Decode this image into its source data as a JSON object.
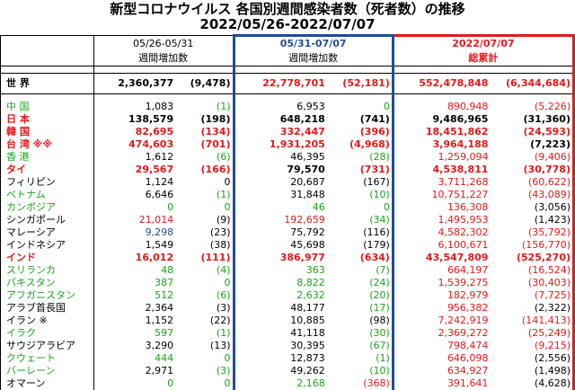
{
  "title_line1": "新型コロナウイルス 各国別週間感染者数（死者数）の推移",
  "title_line2": "2022/05/26-2022/07/07",
  "headers": {
    "period_a": "05/26-05/31",
    "period_a_sub": "週間増加数",
    "period_b": "05/31-07/07",
    "period_b_sub": "週間増加数",
    "period_c": "2022/07/07",
    "period_c_sub": "総累計"
  },
  "world": {
    "name": "世 界",
    "a_cases": "2,360,377",
    "a_deaths": "(9,478)",
    "b_cases": "22,778,701",
    "b_deaths": "(52,181)",
    "c_cases": "552,478,848",
    "c_deaths": "(6,344,684)"
  },
  "colors": {
    "red": "#e21a1a",
    "green": "#1aa51a",
    "blue": "#1f4e96"
  },
  "rows": [
    {
      "name": "中 国",
      "nc": "green",
      "a": "1,083",
      "ac": "black",
      "ad": "(1)",
      "adc": "green",
      "b": "6,953",
      "bc": "black",
      "bd": "0",
      "bdc": "green",
      "c": "890,948",
      "cc": "red",
      "cd": "(5,226)",
      "cdc": "red",
      "bold": false
    },
    {
      "name": "日 本",
      "nc": "red",
      "a": "138,579",
      "ac": "black",
      "ad": "(198)",
      "adc": "black",
      "b": "648,218",
      "bc": "black",
      "bd": "(741)",
      "bdc": "black",
      "c": "9,486,965",
      "cc": "black",
      "cd": "(31,360)",
      "cdc": "black",
      "bold": true
    },
    {
      "name": "韓 国",
      "nc": "red",
      "a": "82,695",
      "ac": "red",
      "ad": "(134)",
      "adc": "red",
      "b": "332,447",
      "bc": "red",
      "bd": "(396)",
      "bdc": "red",
      "c": "18,451,862",
      "cc": "red",
      "cd": "(24,593)",
      "cdc": "red",
      "bold": true
    },
    {
      "name": "台 湾 ※※",
      "nc": "red",
      "a": "474,603",
      "ac": "red",
      "ad": "(701)",
      "adc": "red",
      "b": "1,931,205",
      "bc": "red",
      "bd": "(4,968)",
      "bdc": "red",
      "c": "3,964,188",
      "cc": "red",
      "cd": "(7,223)",
      "cdc": "black",
      "bold": true
    },
    {
      "name": "香 港",
      "nc": "green",
      "a": "1,612",
      "ac": "black",
      "ad": "(6)",
      "adc": "green",
      "b": "46,395",
      "bc": "black",
      "bd": "(28)",
      "bdc": "green",
      "c": "1,259,094",
      "cc": "red",
      "cd": "(9,406)",
      "cdc": "red",
      "bold": false
    },
    {
      "name": "タイ",
      "nc": "red",
      "a": "29,567",
      "ac": "red",
      "ad": "(166)",
      "adc": "red",
      "b": "79,570",
      "bc": "black",
      "bd": "(731)",
      "bdc": "red",
      "c": "4,538,811",
      "cc": "red",
      "cd": "(30,778)",
      "cdc": "red",
      "bold": true
    },
    {
      "name": "フィリピン",
      "nc": "black",
      "a": "1,124",
      "ac": "black",
      "ad": "0",
      "adc": "black",
      "b": "20,687",
      "bc": "black",
      "bd": "(167)",
      "bdc": "black",
      "c": "3,711,268",
      "cc": "red",
      "cd": "(60,622)",
      "cdc": "red",
      "bold": false
    },
    {
      "name": "ベトナム",
      "nc": "green",
      "a": "6,646",
      "ac": "black",
      "ad": "(1)",
      "adc": "green",
      "b": "31,848",
      "bc": "black",
      "bd": "(10)",
      "bdc": "green",
      "c": "10,751,227",
      "cc": "red",
      "cd": "(43,089)",
      "cdc": "red",
      "bold": false
    },
    {
      "name": "カンボジア",
      "nc": "green",
      "a": "0",
      "ac": "green",
      "ad": "0",
      "adc": "green",
      "b": "46",
      "bc": "green",
      "bd": "0",
      "bdc": "green",
      "c": "136,308",
      "cc": "red",
      "cd": "(3,056)",
      "cdc": "black",
      "bold": false
    },
    {
      "name": "シンガポール",
      "nc": "black",
      "a": "21,014",
      "ac": "red",
      "ad": "(9)",
      "adc": "black",
      "b": "192,659",
      "bc": "red",
      "bd": "(34)",
      "bdc": "green",
      "c": "1,495,953",
      "cc": "red",
      "cd": "(1,423)",
      "cdc": "black",
      "bold": false
    },
    {
      "name": "マレーシア",
      "nc": "black",
      "a": "9,298",
      "ac": "blue",
      "ad": "(23)",
      "adc": "black",
      "b": "75,792",
      "bc": "black",
      "bd": "(116)",
      "bdc": "black",
      "c": "4,582,302",
      "cc": "red",
      "cd": "(35,792)",
      "cdc": "red",
      "bold": false
    },
    {
      "name": "インドネシア",
      "nc": "black",
      "a": "1,549",
      "ac": "black",
      "ad": "(38)",
      "adc": "black",
      "b": "45,698",
      "bc": "black",
      "bd": "(179)",
      "bdc": "black",
      "c": "6,100,671",
      "cc": "red",
      "cd": "(156,770)",
      "cdc": "red",
      "bold": false
    },
    {
      "name": "インド",
      "nc": "red",
      "a": "16,012",
      "ac": "red",
      "ad": "(111)",
      "adc": "red",
      "b": "386,977",
      "bc": "red",
      "bd": "(634)",
      "bdc": "red",
      "c": "43,547,809",
      "cc": "red",
      "cd": "(525,270)",
      "cdc": "red",
      "bold": true
    },
    {
      "name": "スリランカ",
      "nc": "green",
      "a": "48",
      "ac": "green",
      "ad": "(4)",
      "adc": "green",
      "b": "363",
      "bc": "green",
      "bd": "(7)",
      "bdc": "green",
      "c": "664,197",
      "cc": "red",
      "cd": "(16,524)",
      "cdc": "red",
      "bold": false
    },
    {
      "name": "パキスタン",
      "nc": "green",
      "a": "387",
      "ac": "green",
      "ad": "0",
      "adc": "green",
      "b": "8,822",
      "bc": "green",
      "bd": "(24)",
      "bdc": "green",
      "c": "1,539,275",
      "cc": "red",
      "cd": "(30,403)",
      "cdc": "red",
      "bold": false
    },
    {
      "name": "アフガニスタン",
      "nc": "green",
      "a": "512",
      "ac": "green",
      "ad": "(6)",
      "adc": "green",
      "b": "2,632",
      "bc": "green",
      "bd": "(20)",
      "bdc": "green",
      "c": "182,979",
      "cc": "red",
      "cd": "(7,725)",
      "cdc": "red",
      "bold": false
    },
    {
      "name": "アラブ首長国",
      "nc": "black",
      "a": "2,364",
      "ac": "black",
      "ad": "(3)",
      "adc": "black",
      "b": "48,177",
      "bc": "black",
      "bd": "(17)",
      "bdc": "green",
      "c": "956,382",
      "cc": "red",
      "cd": "(2,322)",
      "cdc": "black",
      "bold": false
    },
    {
      "name": "イラン ※",
      "nc": "black",
      "a": "1,152",
      "ac": "black",
      "ad": "(22)",
      "adc": "black",
      "b": "10,885",
      "bc": "black",
      "bd": "(98)",
      "bdc": "black",
      "c": "7,242,919",
      "cc": "red",
      "cd": "(141,413)",
      "cdc": "red",
      "bold": false
    },
    {
      "name": "イラク",
      "nc": "green",
      "a": "597",
      "ac": "green",
      "ad": "(1)",
      "adc": "green",
      "b": "41,118",
      "bc": "black",
      "bd": "(30)",
      "bdc": "green",
      "c": "2,369,272",
      "cc": "red",
      "cd": "(25,249)",
      "cdc": "red",
      "bold": false
    },
    {
      "name": "サウジアラビア",
      "nc": "black",
      "a": "3,290",
      "ac": "black",
      "ad": "(13)",
      "adc": "black",
      "b": "30,395",
      "bc": "black",
      "bd": "(67)",
      "bdc": "green",
      "c": "798,474",
      "cc": "red",
      "cd": "(9,215)",
      "cdc": "red",
      "bold": false
    },
    {
      "name": "クウェート",
      "nc": "green",
      "a": "444",
      "ac": "green",
      "ad": "0",
      "adc": "green",
      "b": "12,873",
      "bc": "black",
      "bd": "(1)",
      "bdc": "green",
      "c": "646,098",
      "cc": "red",
      "cd": "(2,556)",
      "cdc": "black",
      "bold": false
    },
    {
      "name": "バーレーン",
      "nc": "green",
      "a": "2,971",
      "ac": "black",
      "ad": "(3)",
      "adc": "green",
      "b": "49,262",
      "bc": "black",
      "bd": "(10)",
      "bdc": "green",
      "c": "634,927",
      "cc": "red",
      "cd": "(1,498)",
      "cdc": "black",
      "bold": false
    },
    {
      "name": "オマーン",
      "nc": "black",
      "a": "0",
      "ac": "green",
      "ad": "0",
      "adc": "green",
      "b": "2,168",
      "bc": "green",
      "bd": "(368)",
      "bdc": "red",
      "c": "391,641",
      "cc": "red",
      "cd": "(4,628)",
      "cdc": "black",
      "bold": false
    }
  ]
}
